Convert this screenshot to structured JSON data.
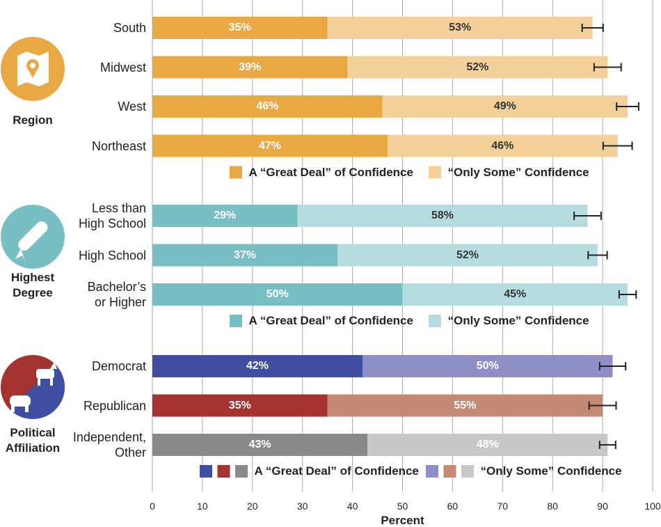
{
  "chart_data": [
    {
      "type": "bar",
      "stacked": true,
      "group_label": "Region",
      "categories": [
        "South",
        "Midwest",
        "West",
        "Northeast"
      ],
      "label_colors": [
        "#ffffff",
        "#333333"
      ],
      "series": [
        {
          "name": "A “Great Deal” of Confidence",
          "color": "#e8a945",
          "values": [
            35,
            39,
            46,
            47
          ],
          "value_labels": [
            "35%",
            "39%",
            "46%",
            "47%"
          ]
        },
        {
          "name": "“Only Some” Confidence",
          "color": "#f4d19b",
          "values": [
            53,
            52,
            49,
            46
          ],
          "value_labels": [
            "53%",
            "52%",
            "49%",
            "46%"
          ]
        }
      ],
      "errors": [
        2.1,
        2.7,
        2.2,
        2.9
      ]
    },
    {
      "type": "bar",
      "stacked": true,
      "group_label": "Highest\nDegree",
      "categories": [
        "Less than\nHigh School",
        "High School",
        "Bachelor’s\nor Higher"
      ],
      "label_colors": [
        "#ffffff",
        "#333333"
      ],
      "series": [
        {
          "name": "A “Great Deal” of Confidence",
          "color": "#78bfc4",
          "values": [
            29,
            37,
            50
          ],
          "value_labels": [
            "29%",
            "37%",
            "50%"
          ]
        },
        {
          "name": "“Only Some” Confidence",
          "color": "#b5dde0",
          "values": [
            58,
            52,
            45
          ],
          "value_labels": [
            "58%",
            "52%",
            "45%"
          ]
        }
      ],
      "errors": [
        2.7,
        1.9,
        1.7
      ]
    },
    {
      "type": "bar",
      "stacked": true,
      "group_label": "Political\nAffiliation",
      "categories": [
        "Democrat",
        "Republican",
        "Independent,\nOther"
      ],
      "label_colors": [
        "#ffffff",
        "#ffffff"
      ],
      "series": [
        {
          "name": "A “Great Deal” of Confidence",
          "color": [
            "#3f4ea0",
            "#a4322e",
            "#8a8a8a"
          ],
          "values": [
            42,
            35,
            43
          ],
          "value_labels": [
            "42%",
            "35%",
            "43%"
          ]
        },
        {
          "name": "“Only Some” Confidence",
          "color": [
            "#8f8fc8",
            "#c48a75",
            "#c8c8c8"
          ],
          "values": [
            50,
            55,
            48
          ],
          "value_labels": [
            "50%",
            "55%",
            "48%"
          ]
        }
      ],
      "errors": [
        2.6,
        2.7,
        1.6
      ],
      "xlabel": "Percent",
      "xlim": [
        0,
        100
      ],
      "xticks": [
        0,
        10,
        20,
        30,
        40,
        50,
        60,
        70,
        80,
        90,
        100
      ],
      "grid": true
    }
  ]
}
